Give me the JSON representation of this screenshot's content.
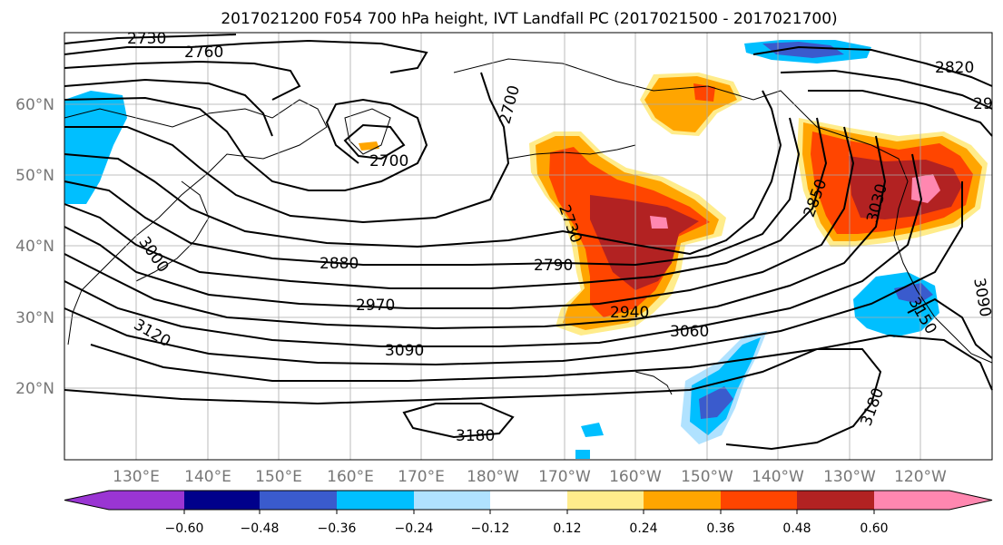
{
  "title": "2017021200 F054 700 hPa height, IVT Landfall PC (2017021500 - 2017021700)",
  "map": {
    "lat_ticks": [
      "60°N",
      "50°N",
      "40°N",
      "30°N",
      "20°N"
    ],
    "lon_ticks": [
      "130°E",
      "140°E",
      "150°E",
      "160°E",
      "170°E",
      "180°W",
      "170°W",
      "160°W",
      "150°W",
      "140°W",
      "130°W",
      "120°W"
    ],
    "contour_labels": [
      "2730",
      "2760",
      "2700",
      "2700",
      "3000",
      "2880",
      "2970",
      "3120",
      "3090",
      "3180",
      "2730",
      "2790",
      "2940",
      "3060",
      "2850",
      "3030",
      "2820",
      "29",
      "3150",
      "3090",
      "3180"
    ]
  },
  "colorbar": {
    "ticks": [
      "−0.60",
      "−0.48",
      "−0.36",
      "−0.24",
      "−0.12",
      "0.12",
      "0.24",
      "0.36",
      "0.48",
      "0.60"
    ],
    "colors": [
      "#9a35d3",
      "#00008b",
      "#3a5bcd",
      "#00bfff",
      "#b0e2ff",
      "#ffffff",
      "#ffec8b",
      "#ffa500",
      "#ff4500",
      "#b22222",
      "#ff87b0"
    ]
  },
  "colors": {
    "contour": "#000000",
    "grid": "#aaaaaa",
    "coast": "#000000"
  }
}
